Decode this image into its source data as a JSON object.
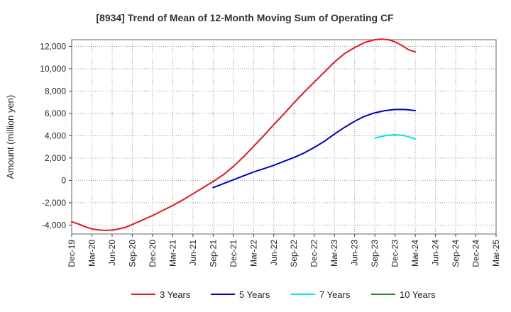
{
  "chart_data": {
    "type": "line",
    "title": "[8934]  Trend of Mean of 12-Month Moving Sum of Operating CF",
    "xlabel": "",
    "ylabel": "Amount (million yen)",
    "ylim": [
      -4800,
      12600
    ],
    "yticks": [
      -4000,
      -2000,
      0,
      2000,
      4000,
      6000,
      8000,
      10000,
      12000
    ],
    "ytick_labels": [
      "-4,000",
      "-2,000",
      "0",
      "2,000",
      "4,000",
      "6,000",
      "8,000",
      "10,000",
      "12,000"
    ],
    "x_categories": [
      "Dec-19",
      "Mar-20",
      "Jun-20",
      "Sep-20",
      "Dec-20",
      "Mar-21",
      "Jun-21",
      "Sep-21",
      "Dec-21",
      "Mar-22",
      "Jun-22",
      "Sep-22",
      "Dec-22",
      "Mar-23",
      "Jun-23",
      "Sep-23",
      "Dec-23",
      "Mar-24",
      "Jun-24",
      "Sep-24",
      "Dec-24",
      "Mar-25"
    ],
    "grid": true,
    "legend_position": "bottom",
    "series": [
      {
        "name": "3 Years",
        "color": "#e41a1c",
        "x": [
          0,
          0.33,
          0.67,
          1,
          1.33,
          1.67,
          2,
          2.33,
          2.67,
          3,
          3.5,
          4,
          4.5,
          5,
          5.5,
          6,
          6.5,
          7,
          7.5,
          8,
          8.5,
          9,
          9.5,
          10,
          10.5,
          11,
          11.5,
          12,
          12.5,
          13,
          13.5,
          14,
          14.5,
          15,
          15.33,
          15.67,
          16,
          16.33,
          16.67,
          17
        ],
        "values": [
          -3700,
          -3900,
          -4150,
          -4350,
          -4430,
          -4480,
          -4450,
          -4350,
          -4200,
          -3950,
          -3550,
          -3150,
          -2700,
          -2250,
          -1750,
          -1200,
          -650,
          -100,
          500,
          1250,
          2100,
          3050,
          4000,
          5000,
          5950,
          6950,
          7900,
          8800,
          9700,
          10600,
          11350,
          11900,
          12350,
          12600,
          12650,
          12600,
          12400,
          12100,
          11700,
          11500
        ]
      },
      {
        "name": "5 Years",
        "color": "#0000cc",
        "x": [
          7,
          7.5,
          8,
          8.5,
          9,
          9.5,
          10,
          10.5,
          11,
          11.5,
          12,
          12.5,
          13,
          13.5,
          14,
          14.5,
          15,
          15.5,
          16,
          16.5,
          17
        ],
        "values": [
          -650,
          -300,
          50,
          400,
          750,
          1050,
          1350,
          1700,
          2050,
          2450,
          2950,
          3500,
          4150,
          4750,
          5300,
          5750,
          6050,
          6250,
          6350,
          6350,
          6250
        ]
      },
      {
        "name": "7 Years",
        "color": "#00e5ee",
        "x": [
          15,
          15.5,
          16,
          16.5,
          17
        ],
        "values": [
          3800,
          4000,
          4100,
          4000,
          3700
        ]
      },
      {
        "name": "10 Years",
        "color": "#228b22",
        "x": [],
        "values": []
      }
    ]
  }
}
